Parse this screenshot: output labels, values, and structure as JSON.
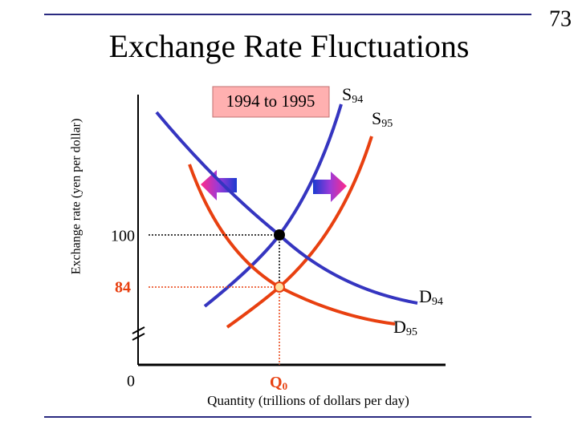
{
  "page_number": "73",
  "title": "Exchange Rate Fluctuations",
  "y_axis_label": "Exchange rate (yen per dollar)",
  "x_axis_label": "Quantity (trillions of dollars per day)",
  "period_box": "1994 to 1995",
  "curves": [
    {
      "letter": "S",
      "sub": "94"
    },
    {
      "letter": "S",
      "sub": "95"
    },
    {
      "letter": "D",
      "sub": "94"
    },
    {
      "letter": "D",
      "sub": "95"
    }
  ],
  "y_labels": [
    "100",
    "84"
  ],
  "origin": "0",
  "quantity": {
    "letter": "Q",
    "sub": "0"
  }
}
